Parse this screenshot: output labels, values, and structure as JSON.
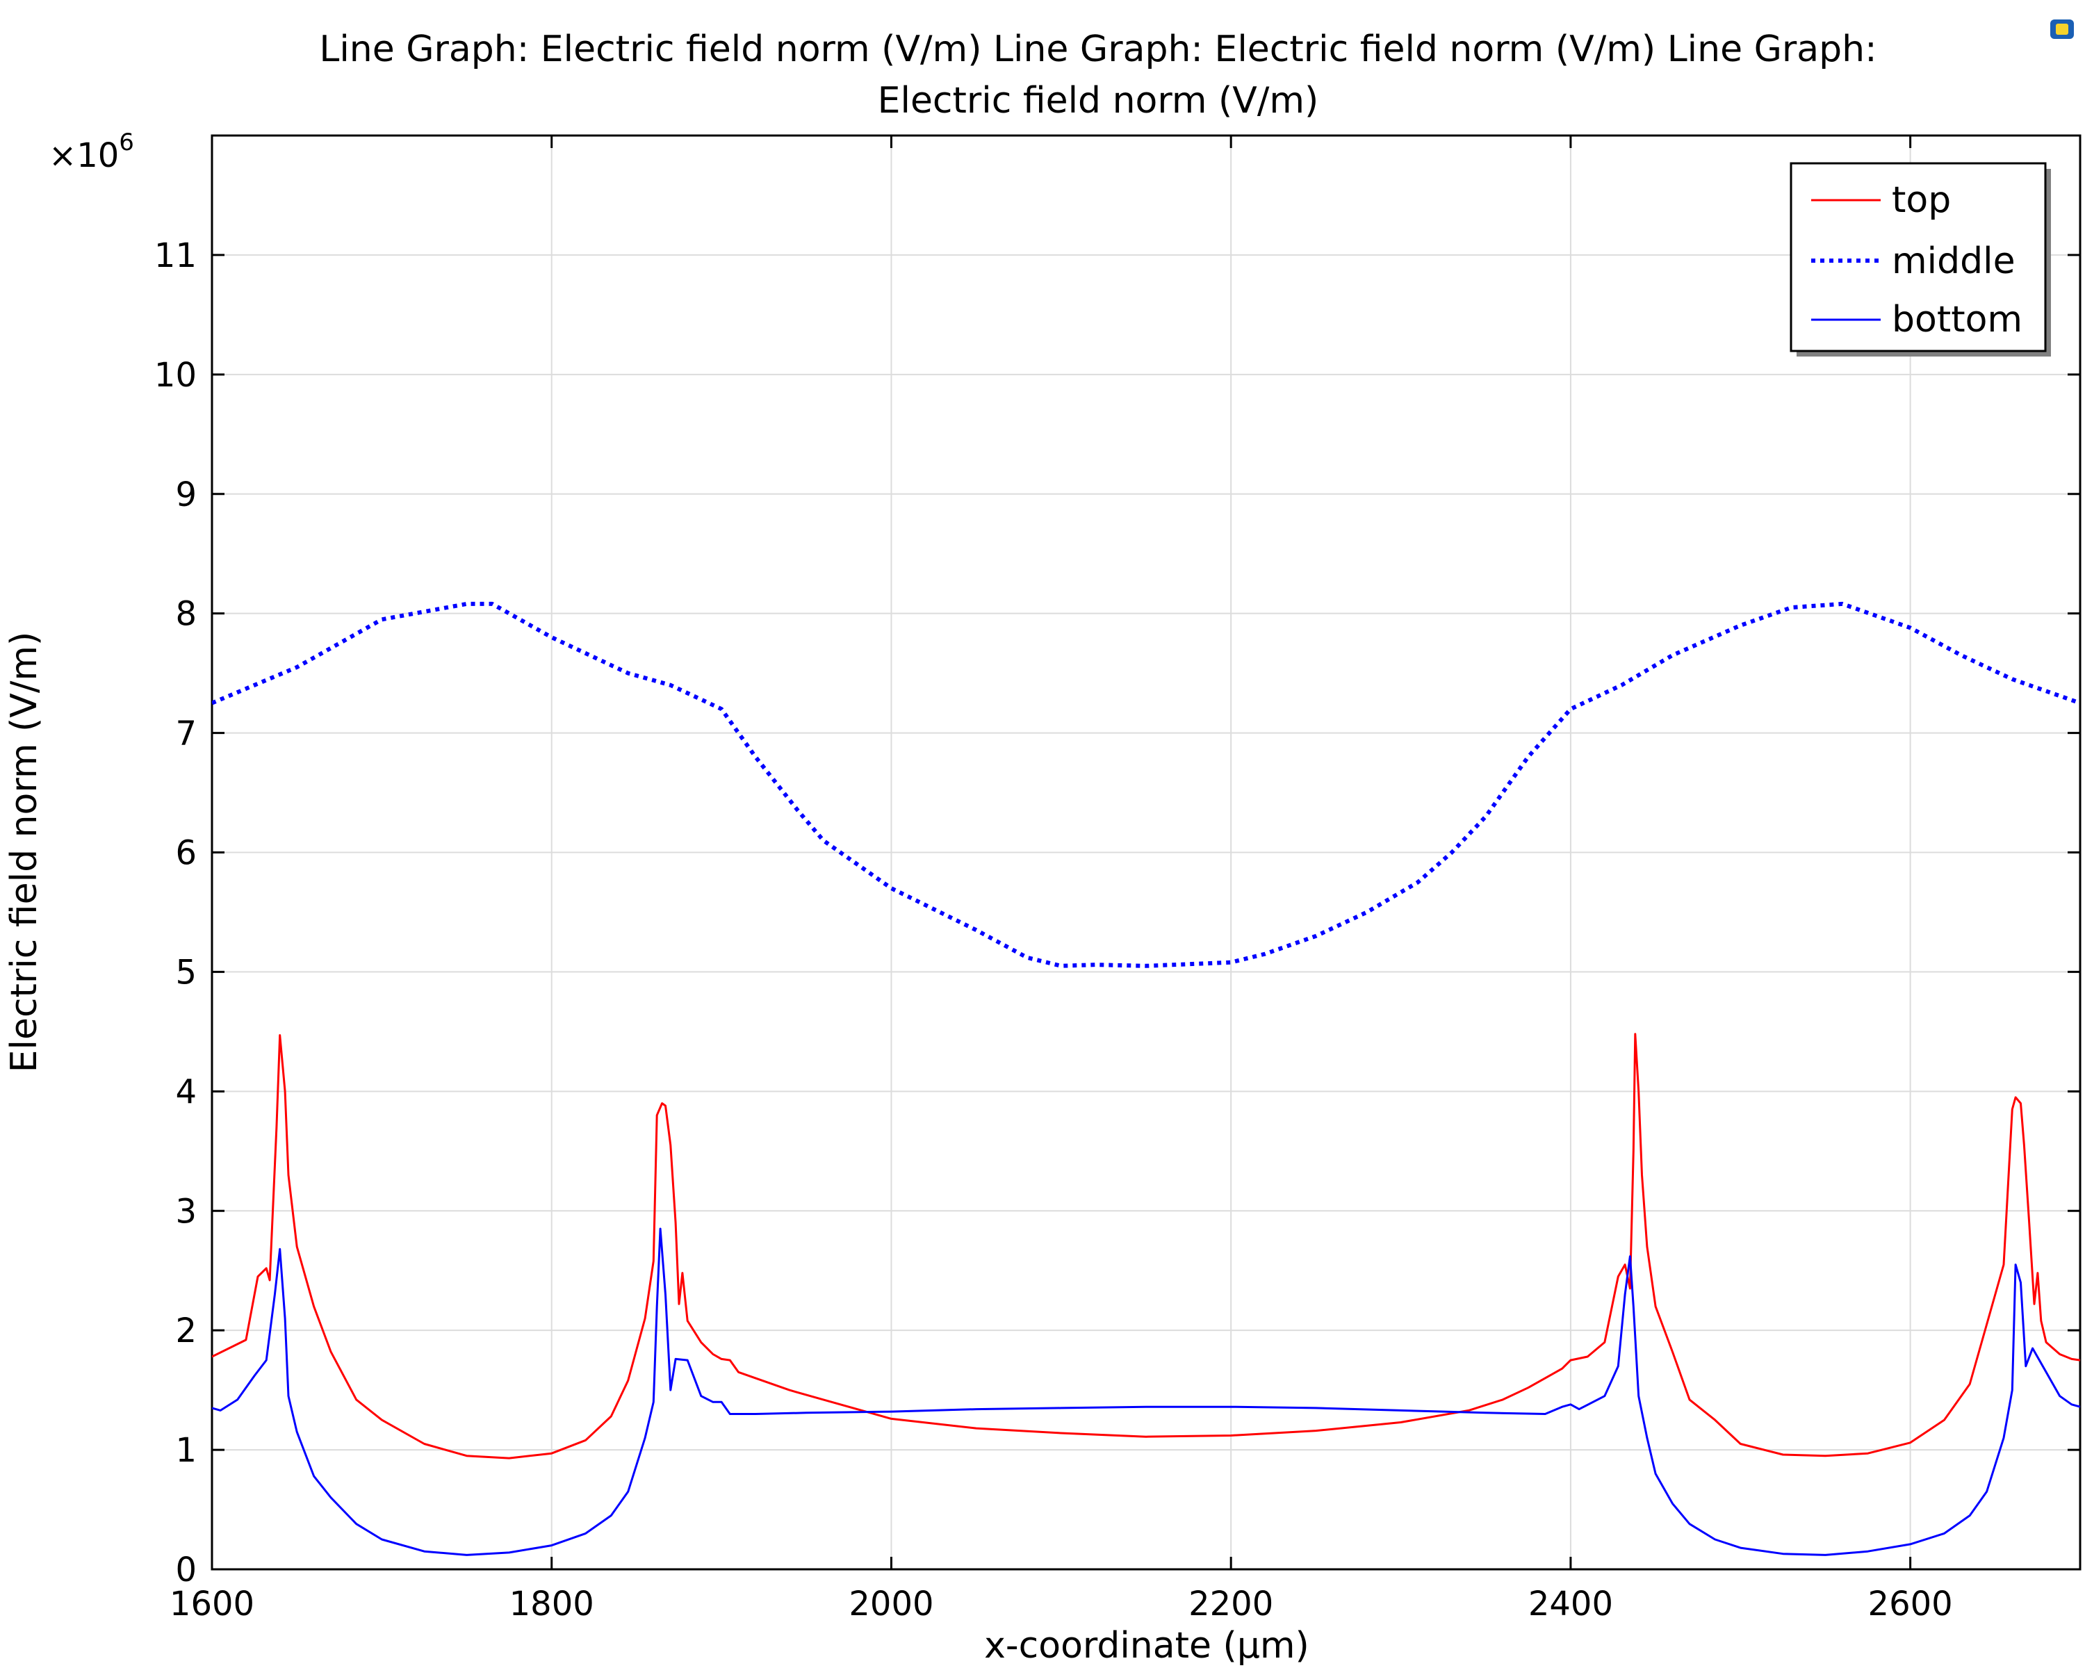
{
  "chart_data": {
    "type": "line",
    "title": "Line Graph: Electric field norm (V/m)  Line Graph: Electric field norm (V/m)  Line Graph: Electric field norm (V/m)",
    "title_lines": [
      "Line Graph: Electric field norm (V/m)  Line Graph: Electric field norm (V/m)  Line Graph:",
      "Electric field norm (V/m)"
    ],
    "xlabel": "x-coordinate (µm)",
    "ylabel": "Electric field norm (V/m)",
    "y_multiplier": "×10",
    "y_multiplier_exp": "6",
    "xlim": [
      1600,
      2700
    ],
    "ylim": [
      0,
      12
    ],
    "xticks": [
      "1600",
      "1800",
      "2000",
      "2200",
      "2400",
      "2600"
    ],
    "xtick_values": [
      1600,
      1800,
      2000,
      2200,
      2400,
      2600
    ],
    "yticks": [
      "0",
      "1",
      "2",
      "3",
      "4",
      "5",
      "6",
      "7",
      "8",
      "9",
      "10",
      "11"
    ],
    "ytick_values": [
      0,
      1,
      2,
      3,
      4,
      5,
      6,
      7,
      8,
      9,
      10,
      11
    ],
    "grid": true,
    "legend_position": "top-right",
    "series": [
      {
        "name": "top",
        "color": "#ff0000",
        "style": "solid",
        "x": [
          1600,
          1610,
          1620,
          1627,
          1632,
          1634,
          1638,
          1640,
          1643,
          1645,
          1650,
          1660,
          1670,
          1685,
          1700,
          1725,
          1750,
          1775,
          1800,
          1820,
          1835,
          1845,
          1855,
          1860,
          1862,
          1865,
          1867,
          1870,
          1873,
          1875,
          1877,
          1880,
          1888,
          1895,
          1900,
          1905,
          1910,
          1920,
          1940,
          1960,
          2000,
          2050,
          2100,
          2150,
          2200,
          2250,
          2300,
          2340,
          2360,
          2375,
          2385,
          2395,
          2400,
          2410,
          2420,
          2428,
          2432,
          2435,
          2437,
          2438,
          2440,
          2442,
          2445,
          2450,
          2460,
          2470,
          2485,
          2500,
          2525,
          2550,
          2575,
          2600,
          2620,
          2635,
          2645,
          2655,
          2660,
          2662,
          2665,
          2667,
          2670,
          2673,
          2675,
          2677,
          2680,
          2688,
          2695,
          2700
        ],
        "y": [
          1.78,
          1.85,
          1.92,
          2.45,
          2.52,
          2.42,
          3.7,
          4.47,
          4.0,
          3.3,
          2.7,
          2.2,
          1.82,
          1.42,
          1.25,
          1.05,
          0.95,
          0.93,
          0.97,
          1.08,
          1.28,
          1.58,
          2.1,
          2.58,
          3.8,
          3.9,
          3.88,
          3.55,
          2.9,
          2.22,
          2.48,
          2.08,
          1.9,
          1.8,
          1.76,
          1.75,
          1.65,
          1.6,
          1.5,
          1.42,
          1.26,
          1.18,
          1.14,
          1.11,
          1.12,
          1.16,
          1.23,
          1.33,
          1.42,
          1.52,
          1.6,
          1.68,
          1.75,
          1.78,
          1.9,
          2.45,
          2.55,
          2.35,
          3.5,
          4.48,
          4.0,
          3.3,
          2.7,
          2.2,
          1.82,
          1.42,
          1.25,
          1.05,
          0.96,
          0.95,
          0.97,
          1.06,
          1.25,
          1.55,
          2.05,
          2.55,
          3.85,
          3.95,
          3.9,
          3.55,
          2.9,
          2.22,
          2.48,
          2.08,
          1.9,
          1.8,
          1.76,
          1.75
        ]
      },
      {
        "name": "middle",
        "color": "#0000ff",
        "style": "dotted",
        "x": [
          1600,
          1650,
          1700,
          1750,
          1765,
          1800,
          1830,
          1845,
          1870,
          1900,
          1920,
          1945,
          1960,
          1980,
          2000,
          2050,
          2080,
          2100,
          2120,
          2150,
          2200,
          2220,
          2250,
          2280,
          2310,
          2330,
          2350,
          2375,
          2400,
          2430,
          2460,
          2500,
          2530,
          2560,
          2600,
          2630,
          2660,
          2700
        ],
        "y": [
          7.25,
          7.55,
          7.95,
          8.08,
          8.08,
          7.8,
          7.6,
          7.5,
          7.4,
          7.2,
          6.8,
          6.35,
          6.1,
          5.9,
          5.7,
          5.35,
          5.12,
          5.05,
          5.06,
          5.05,
          5.08,
          5.15,
          5.3,
          5.5,
          5.75,
          6.0,
          6.3,
          6.8,
          7.2,
          7.4,
          7.65,
          7.9,
          8.05,
          8.08,
          7.88,
          7.65,
          7.45,
          7.25
        ]
      },
      {
        "name": "bottom",
        "color": "#0000ff",
        "style": "solid",
        "x": [
          1600,
          1605,
          1615,
          1625,
          1632,
          1637,
          1640,
          1643,
          1645,
          1650,
          1660,
          1670,
          1685,
          1700,
          1725,
          1750,
          1775,
          1800,
          1820,
          1835,
          1845,
          1855,
          1860,
          1862,
          1864,
          1867,
          1870,
          1873,
          1880,
          1888,
          1895,
          1900,
          1905,
          1920,
          1950,
          2000,
          2050,
          2100,
          2150,
          2200,
          2250,
          2300,
          2350,
          2385,
          2395,
          2400,
          2405,
          2420,
          2428,
          2432,
          2435,
          2437,
          2440,
          2445,
          2450,
          2460,
          2470,
          2485,
          2500,
          2525,
          2550,
          2575,
          2600,
          2620,
          2635,
          2645,
          2655,
          2660,
          2662,
          2665,
          2668,
          2672,
          2680,
          2688,
          2695,
          2700
        ],
        "y": [
          1.35,
          1.33,
          1.42,
          1.62,
          1.75,
          2.3,
          2.68,
          2.1,
          1.45,
          1.15,
          0.78,
          0.6,
          0.38,
          0.25,
          0.15,
          0.12,
          0.14,
          0.2,
          0.3,
          0.45,
          0.65,
          1.1,
          1.4,
          2.2,
          2.85,
          2.3,
          1.5,
          1.76,
          1.75,
          1.45,
          1.4,
          1.4,
          1.3,
          1.3,
          1.31,
          1.32,
          1.34,
          1.35,
          1.36,
          1.36,
          1.35,
          1.33,
          1.31,
          1.3,
          1.36,
          1.38,
          1.34,
          1.45,
          1.7,
          2.3,
          2.62,
          2.2,
          1.45,
          1.1,
          0.8,
          0.55,
          0.38,
          0.25,
          0.18,
          0.13,
          0.12,
          0.15,
          0.21,
          0.3,
          0.45,
          0.65,
          1.1,
          1.5,
          2.55,
          2.4,
          1.7,
          1.85,
          1.65,
          1.45,
          1.38,
          1.36
        ]
      }
    ]
  }
}
